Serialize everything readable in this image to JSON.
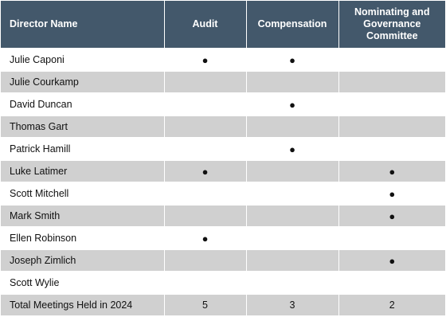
{
  "table": {
    "headers": {
      "name": "Director Name",
      "audit": "Audit",
      "compensation": "Compensation",
      "nominating_lines": [
        "Nominating and",
        "Governance",
        "Committee"
      ]
    },
    "marker": "●",
    "rows": [
      {
        "name": "Julie Caponi",
        "audit": "●",
        "compensation": "●",
        "nominating": ""
      },
      {
        "name": "Julie Courkamp",
        "audit": "",
        "compensation": "",
        "nominating": ""
      },
      {
        "name": "David Duncan",
        "audit": "",
        "compensation": "●",
        "nominating": ""
      },
      {
        "name": "Thomas Gart",
        "audit": "",
        "compensation": "",
        "nominating": ""
      },
      {
        "name": "Patrick Hamill",
        "audit": "",
        "compensation": "●",
        "nominating": ""
      },
      {
        "name": "Luke Latimer",
        "audit": "●",
        "compensation": "",
        "nominating": "●"
      },
      {
        "name": "Scott Mitchell",
        "audit": "",
        "compensation": "",
        "nominating": "●"
      },
      {
        "name": "Mark Smith",
        "audit": "",
        "compensation": "",
        "nominating": "●"
      },
      {
        "name": "Ellen Robinson",
        "audit": "●",
        "compensation": "",
        "nominating": ""
      },
      {
        "name": "Joseph Zimlich",
        "audit": "",
        "compensation": "",
        "nominating": "●"
      },
      {
        "name": "Scott Wylie",
        "audit": "",
        "compensation": "",
        "nominating": ""
      }
    ],
    "totals": {
      "label": "Total Meetings Held in 2024",
      "audit": "5",
      "compensation": "3",
      "nominating": "2"
    }
  },
  "colors": {
    "header_bg": "#43586b",
    "header_text": "#ffffff",
    "stripe": "#d0d0d0"
  }
}
